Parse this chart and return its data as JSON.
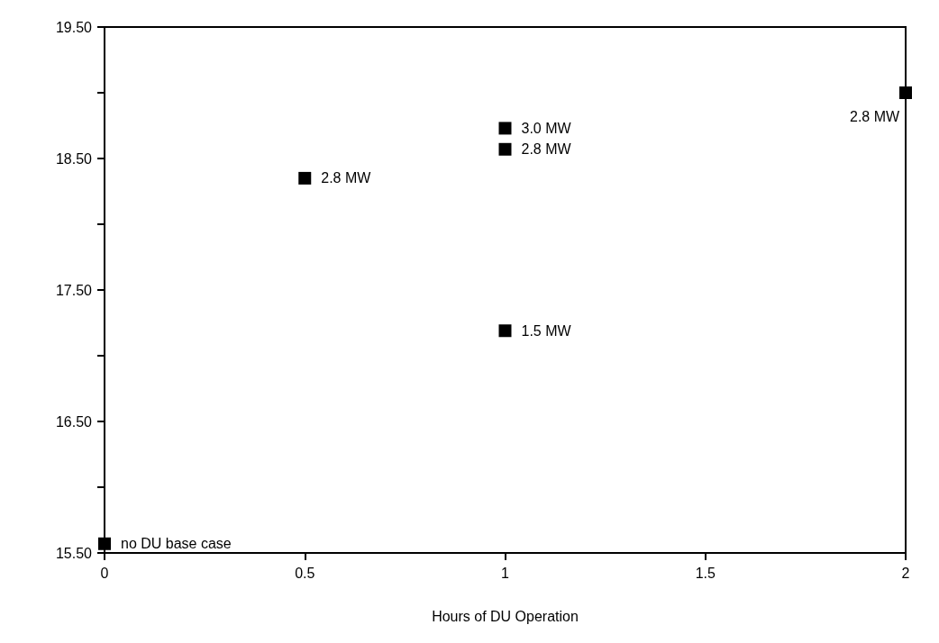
{
  "chart_data": {
    "type": "scatter",
    "xlabel": "Hours of DU Operation",
    "x": [
      0,
      0.5,
      1,
      1,
      1,
      2
    ],
    "series": [
      {
        "color": "#000000",
        "values": [
          15.57,
          18.35,
          18.73,
          18.57,
          17.19,
          19.0
        ]
      }
    ],
    "marker": "square",
    "xlim": [
      0,
      2
    ],
    "xticks": [
      0,
      0.5,
      1,
      1.5,
      2
    ],
    "ylim": [
      15.5,
      19.5
    ],
    "yticks": [
      {
        "value": 15.5,
        "label": "15.50"
      },
      {
        "value": 16,
        "label": null
      },
      {
        "value": 16.5,
        "label": "16.50"
      },
      {
        "value": 17,
        "label": null
      },
      {
        "value": 17.5,
        "label": "17.50"
      },
      {
        "value": 18,
        "label": null
      },
      {
        "value": 18.5,
        "label": "18.50"
      },
      {
        "value": 19,
        "label": null
      },
      {
        "value": 19.5,
        "label": "19.50"
      }
    ],
    "annotations": [
      {
        "text": "no DU base case",
        "x": 0,
        "y": 15.57
      },
      {
        "text": "2.8 MW",
        "x": 0.5,
        "y": 18.35
      },
      {
        "text": "3.0 MW",
        "x": 1,
        "y": 18.73
      },
      {
        "text": "2.8 MW",
        "x": 1,
        "y": 18.57
      },
      {
        "text": "1.5 MW",
        "x": 1,
        "y": 17.19
      },
      {
        "text": "2.8 MW",
        "x": 2,
        "y": 19.0
      }
    ],
    "grid": false
  }
}
